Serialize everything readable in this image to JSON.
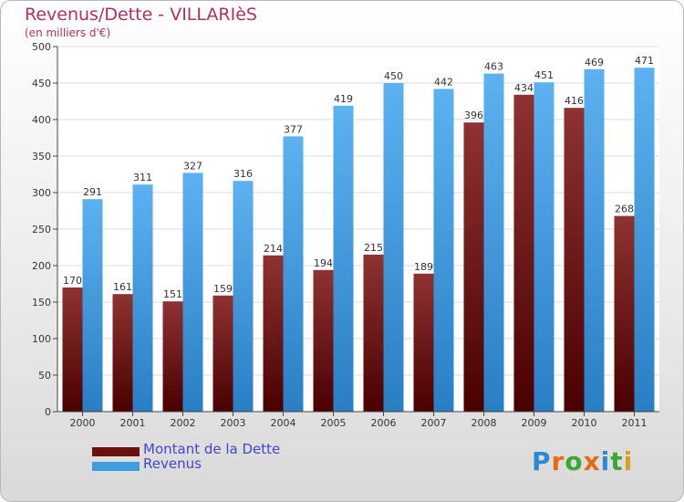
{
  "title": "Revenus/Dette - VILLARIèS",
  "subtitle": "(en milliers d'€)",
  "logo": {
    "text": "Proxiti",
    "letters": [
      "P",
      "r",
      "o",
      "x",
      "i",
      "t",
      "i"
    ],
    "colors": [
      "#2a8ad8",
      "#e86a10",
      "#3aa835",
      "#e86a10",
      "#2a8ad8",
      "#3aa835",
      "#d8a020"
    ]
  },
  "colors": {
    "debt": "#7a1a1a",
    "revenue": "#3f9ee0",
    "title": "#b03060",
    "legend_text": "#4444cc"
  },
  "legend": [
    {
      "label": "Montant de la Dette",
      "color": "#6b0f0f"
    },
    {
      "label": "Revenus",
      "color": "#3f9ee0"
    }
  ],
  "chart_data": {
    "type": "bar",
    "title": "Revenus/Dette - VILLARIèS",
    "ylabel": "",
    "xlabel": "",
    "ylim": [
      0,
      500
    ],
    "yticks": [
      0,
      50,
      100,
      150,
      200,
      250,
      300,
      350,
      400,
      450,
      500
    ],
    "grid": true,
    "legend_position": "bottom-left",
    "categories": [
      "2000",
      "2001",
      "2002",
      "2003",
      "2004",
      "2005",
      "2006",
      "2007",
      "2008",
      "2009",
      "2010",
      "2011"
    ],
    "series": [
      {
        "name": "Montant de la Dette",
        "values": [
          170,
          161,
          151,
          159,
          214,
          194,
          215,
          189,
          396,
          434,
          416,
          268
        ]
      },
      {
        "name": "Revenus",
        "values": [
          291,
          311,
          327,
          316,
          377,
          419,
          450,
          442,
          463,
          451,
          469,
          471
        ]
      }
    ]
  }
}
